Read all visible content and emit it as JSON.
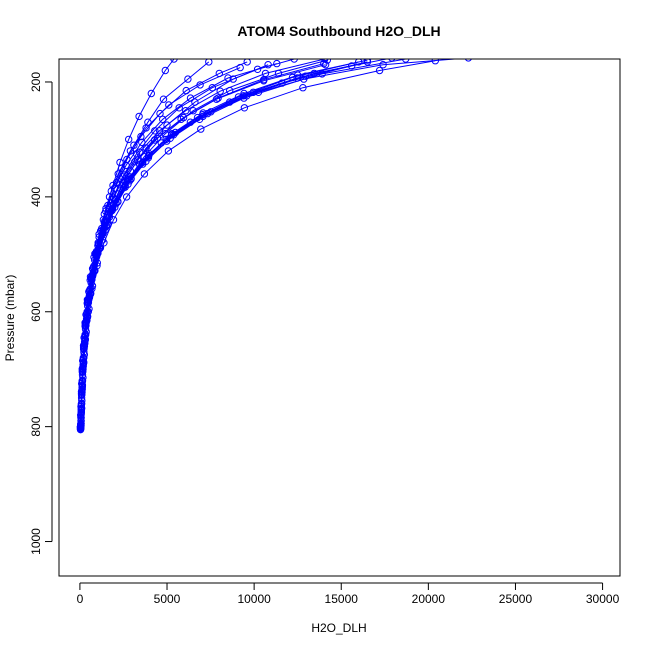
{
  "chart_data": {
    "type": "line",
    "title": "ATOM4 Southbound H2O_DLH",
    "xlabel": "H2O_DLH",
    "ylabel": "Pressure (mbar)",
    "xlim": [
      -1200,
      31000
    ],
    "ylim": [
      1060,
      160
    ],
    "y_reversed": true,
    "x_ticks": [
      0,
      5000,
      10000,
      15000,
      20000,
      25000,
      30000
    ],
    "y_ticks": [
      200,
      400,
      600,
      800,
      1000
    ],
    "grid": false,
    "legend": "none",
    "series_color": "#0000ff",
    "marker": "open-circle",
    "profiles": [
      [
        [
          40,
          805
        ],
        [
          60,
          790
        ],
        [
          80,
          770
        ],
        [
          120,
          740
        ],
        [
          180,
          700
        ],
        [
          260,
          660
        ],
        [
          350,
          620
        ],
        [
          500,
          580
        ],
        [
          700,
          540
        ],
        [
          900,
          500
        ],
        [
          1200,
          460
        ],
        [
          1500,
          420
        ],
        [
          1900,
          380
        ],
        [
          2300,
          340
        ],
        [
          2800,
          300
        ],
        [
          3400,
          260
        ],
        [
          4100,
          220
        ],
        [
          4900,
          180
        ],
        [
          5400,
          160
        ]
      ],
      [
        [
          30,
          800
        ],
        [
          50,
          780
        ],
        [
          100,
          750
        ],
        [
          150,
          710
        ],
        [
          230,
          670
        ],
        [
          320,
          630
        ],
        [
          450,
          590
        ],
        [
          650,
          550
        ],
        [
          850,
          510
        ],
        [
          1100,
          470
        ],
        [
          1400,
          430
        ],
        [
          1800,
          390
        ],
        [
          2400,
          350
        ],
        [
          3100,
          310
        ],
        [
          3900,
          270
        ],
        [
          4800,
          230
        ],
        [
          6200,
          195
        ],
        [
          7400,
          165
        ]
      ],
      [
        [
          60,
          795
        ],
        [
          90,
          760
        ],
        [
          140,
          720
        ],
        [
          200,
          680
        ],
        [
          300,
          640
        ],
        [
          420,
          600
        ],
        [
          600,
          560
        ],
        [
          820,
          520
        ],
        [
          1050,
          480
        ],
        [
          1350,
          440
        ],
        [
          1700,
          400
        ],
        [
          2200,
          360
        ],
        [
          2900,
          320
        ],
        [
          3800,
          280
        ],
        [
          5100,
          240
        ],
        [
          6900,
          205
        ],
        [
          9200,
          175
        ]
      ],
      [
        [
          50,
          800
        ],
        [
          80,
          775
        ],
        [
          130,
          735
        ],
        [
          190,
          695
        ],
        [
          280,
          655
        ],
        [
          400,
          615
        ],
        [
          550,
          575
        ],
        [
          750,
          535
        ],
        [
          950,
          495
        ],
        [
          1250,
          455
        ],
        [
          1600,
          415
        ],
        [
          2100,
          375
        ],
        [
          2700,
          335
        ],
        [
          3500,
          295
        ],
        [
          4600,
          255
        ],
        [
          6100,
          215
        ],
        [
          8000,
          185
        ],
        [
          9600,
          165
        ]
      ],
      [
        [
          70,
          790
        ],
        [
          110,
          755
        ],
        [
          170,
          715
        ],
        [
          250,
          675
        ],
        [
          360,
          635
        ],
        [
          520,
          595
        ],
        [
          720,
          555
        ],
        [
          1000,
          515
        ],
        [
          1300,
          475
        ],
        [
          1700,
          435
        ],
        [
          2200,
          395
        ],
        [
          2900,
          355
        ],
        [
          3800,
          315
        ],
        [
          5000,
          275
        ],
        [
          6600,
          235
        ],
        [
          8800,
          195
        ],
        [
          10800,
          170
        ]
      ],
      [
        [
          45,
          798
        ],
        [
          75,
          765
        ],
        [
          120,
          725
        ],
        [
          180,
          685
        ],
        [
          260,
          645
        ],
        [
          380,
          605
        ],
        [
          540,
          565
        ],
        [
          760,
          525
        ],
        [
          1040,
          485
        ],
        [
          1400,
          445
        ],
        [
          1850,
          405
        ],
        [
          2450,
          365
        ],
        [
          3250,
          325
        ],
        [
          4300,
          285
        ],
        [
          5700,
          245
        ],
        [
          7600,
          210
        ],
        [
          10200,
          178
        ],
        [
          12300,
          160
        ]
      ],
      [
        [
          35,
          805
        ],
        [
          60,
          785
        ],
        [
          95,
          745
        ],
        [
          145,
          705
        ],
        [
          210,
          665
        ],
        [
          300,
          625
        ],
        [
          420,
          585
        ],
        [
          590,
          545
        ],
        [
          810,
          505
        ],
        [
          1100,
          465
        ],
        [
          1480,
          425
        ],
        [
          1980,
          385
        ],
        [
          2650,
          345
        ],
        [
          3550,
          305
        ],
        [
          4750,
          265
        ],
        [
          6350,
          228
        ],
        [
          8500,
          193
        ],
        [
          11300,
          168
        ]
      ],
      [
        [
          55,
          797
        ],
        [
          85,
          770
        ],
        [
          135,
          730
        ],
        [
          205,
          690
        ],
        [
          295,
          650
        ],
        [
          420,
          610
        ],
        [
          590,
          570
        ],
        [
          820,
          530
        ],
        [
          1130,
          490
        ],
        [
          1540,
          450
        ],
        [
          2070,
          410
        ],
        [
          2770,
          370
        ],
        [
          3690,
          330
        ],
        [
          4900,
          290
        ],
        [
          6500,
          250
        ],
        [
          8600,
          215
        ],
        [
          11400,
          185
        ],
        [
          14200,
          162
        ]
      ],
      [
        [
          40,
          800
        ],
        [
          65,
          780
        ],
        [
          100,
          740
        ],
        [
          150,
          700
        ],
        [
          220,
          660
        ],
        [
          320,
          620
        ],
        [
          460,
          580
        ],
        [
          660,
          540
        ],
        [
          940,
          500
        ],
        [
          1330,
          460
        ],
        [
          1870,
          420
        ],
        [
          2600,
          380
        ],
        [
          3600,
          340
        ],
        [
          4950,
          300
        ],
        [
          6750,
          262
        ],
        [
          9100,
          226
        ],
        [
          12200,
          192
        ],
        [
          16000,
          165
        ]
      ],
      [
        [
          50,
          802
        ],
        [
          80,
          772
        ],
        [
          125,
          732
        ],
        [
          185,
          692
        ],
        [
          270,
          652
        ],
        [
          385,
          612
        ],
        [
          545,
          572
        ],
        [
          765,
          532
        ],
        [
          1070,
          492
        ],
        [
          1490,
          452
        ],
        [
          2070,
          412
        ],
        [
          2860,
          372
        ],
        [
          3930,
          332
        ],
        [
          5380,
          292
        ],
        [
          7330,
          255
        ],
        [
          9950,
          218
        ],
        [
          13450,
          185
        ],
        [
          17900,
          158
        ]
      ],
      [
        [
          60,
          795
        ],
        [
          95,
          760
        ],
        [
          150,
          720
        ],
        [
          225,
          680
        ],
        [
          330,
          640
        ],
        [
          480,
          600
        ],
        [
          690,
          560
        ],
        [
          980,
          520
        ],
        [
          1380,
          480
        ],
        [
          1930,
          440
        ],
        [
          2680,
          400
        ],
        [
          3700,
          360
        ],
        [
          5080,
          320
        ],
        [
          6940,
          282
        ],
        [
          9440,
          245
        ],
        [
          12800,
          210
        ],
        [
          17200,
          180
        ],
        [
          20400,
          163
        ]
      ],
      [
        [
          30,
          803
        ],
        [
          55,
          783
        ],
        [
          90,
          743
        ],
        [
          140,
          703
        ],
        [
          210,
          663
        ],
        [
          310,
          623
        ],
        [
          450,
          583
        ],
        [
          650,
          543
        ],
        [
          930,
          503
        ],
        [
          1320,
          463
        ],
        [
          1860,
          423
        ],
        [
          2600,
          383
        ],
        [
          3610,
          343
        ],
        [
          4990,
          303
        ],
        [
          6870,
          265
        ],
        [
          9410,
          228
        ],
        [
          12850,
          195
        ],
        [
          17400,
          170
        ],
        [
          22300,
          158
        ]
      ],
      [
        [
          45,
          800
        ],
        [
          70,
          778
        ],
        [
          110,
          738
        ],
        [
          165,
          698
        ],
        [
          245,
          658
        ],
        [
          355,
          618
        ],
        [
          510,
          578
        ],
        [
          730,
          538
        ],
        [
          1030,
          498
        ],
        [
          1440,
          458
        ],
        [
          2000,
          418
        ],
        [
          2760,
          378
        ],
        [
          3790,
          338
        ],
        [
          5180,
          298
        ],
        [
          7060,
          260
        ],
        [
          9580,
          224
        ],
        [
          12950,
          190
        ]
      ],
      [
        [
          40,
          799
        ],
        [
          65,
          765
        ],
        [
          105,
          725
        ],
        [
          160,
          685
        ],
        [
          240,
          645
        ],
        [
          350,
          605
        ],
        [
          510,
          565
        ],
        [
          730,
          525
        ],
        [
          1040,
          485
        ],
        [
          1470,
          445
        ],
        [
          2060,
          405
        ],
        [
          2870,
          365
        ],
        [
          3980,
          325
        ],
        [
          5480,
          288
        ],
        [
          7520,
          252
        ],
        [
          10250,
          218
        ],
        [
          13900,
          186
        ],
        [
          18700,
          160
        ]
      ],
      [
        [
          35,
          801
        ],
        [
          55,
          779
        ],
        [
          90,
          739
        ],
        [
          140,
          699
        ],
        [
          205,
          659
        ],
        [
          300,
          619
        ],
        [
          430,
          579
        ],
        [
          610,
          539
        ],
        [
          860,
          499
        ],
        [
          1200,
          459
        ],
        [
          1670,
          419
        ],
        [
          2300,
          379
        ],
        [
          3150,
          339
        ],
        [
          4290,
          301
        ],
        [
          5810,
          265
        ],
        [
          7840,
          230
        ],
        [
          10550,
          198
        ],
        [
          14100,
          170
        ]
      ],
      [
        [
          60,
          798
        ],
        [
          95,
          768
        ],
        [
          145,
          728
        ],
        [
          215,
          688
        ],
        [
          310,
          648
        ],
        [
          440,
          608
        ],
        [
          620,
          568
        ],
        [
          860,
          528
        ],
        [
          1180,
          488
        ],
        [
          1610,
          448
        ],
        [
          2180,
          408
        ],
        [
          2940,
          368
        ],
        [
          3950,
          328
        ],
        [
          5290,
          290
        ],
        [
          7070,
          254
        ],
        [
          9420,
          220
        ],
        [
          12500,
          188
        ],
        [
          16500,
          162
        ]
      ],
      [
        [
          50,
          796
        ],
        [
          85,
          762
        ],
        [
          135,
          722
        ],
        [
          200,
          682
        ],
        [
          290,
          642
        ],
        [
          410,
          602
        ],
        [
          570,
          562
        ],
        [
          780,
          522
        ],
        [
          1060,
          482
        ],
        [
          1430,
          442
        ],
        [
          1920,
          402
        ],
        [
          2570,
          362
        ],
        [
          3430,
          322
        ],
        [
          4570,
          285
        ],
        [
          6070,
          250
        ],
        [
          8050,
          216
        ],
        [
          10650,
          185
        ],
        [
          14050,
          160
        ]
      ],
      [
        [
          40,
          804
        ],
        [
          70,
          784
        ],
        [
          110,
          744
        ],
        [
          165,
          704
        ],
        [
          240,
          664
        ],
        [
          345,
          624
        ],
        [
          490,
          584
        ],
        [
          690,
          544
        ],
        [
          960,
          504
        ],
        [
          1330,
          464
        ],
        [
          1830,
          424
        ],
        [
          2510,
          384
        ],
        [
          3430,
          344
        ],
        [
          4670,
          306
        ],
        [
          6340,
          270
        ],
        [
          8590,
          235
        ],
        [
          11600,
          202
        ],
        [
          15600,
          172
        ]
      ],
      [
        [
          45,
          802
        ],
        [
          75,
          776
        ],
        [
          120,
          736
        ],
        [
          180,
          696
        ],
        [
          260,
          656
        ],
        [
          370,
          616
        ],
        [
          520,
          576
        ],
        [
          720,
          536
        ],
        [
          990,
          496
        ],
        [
          1350,
          456
        ],
        [
          1830,
          416
        ],
        [
          2470,
          376
        ],
        [
          3320,
          336
        ],
        [
          4450,
          298
        ],
        [
          5950,
          262
        ],
        [
          7930,
          228
        ],
        [
          10550,
          196
        ],
        [
          14000,
          168
        ]
      ],
      [
        [
          55,
          799
        ],
        [
          90,
          769
        ],
        [
          140,
          729
        ],
        [
          210,
          689
        ],
        [
          305,
          649
        ],
        [
          435,
          609
        ],
        [
          610,
          569
        ],
        [
          850,
          529
        ],
        [
          1170,
          489
        ],
        [
          1600,
          449
        ],
        [
          2170,
          409
        ],
        [
          2930,
          369
        ],
        [
          3940,
          329
        ],
        [
          5280,
          292
        ],
        [
          7050,
          257
        ],
        [
          9390,
          224
        ],
        [
          12470,
          193
        ],
        [
          16500,
          165
        ]
      ]
    ]
  }
}
